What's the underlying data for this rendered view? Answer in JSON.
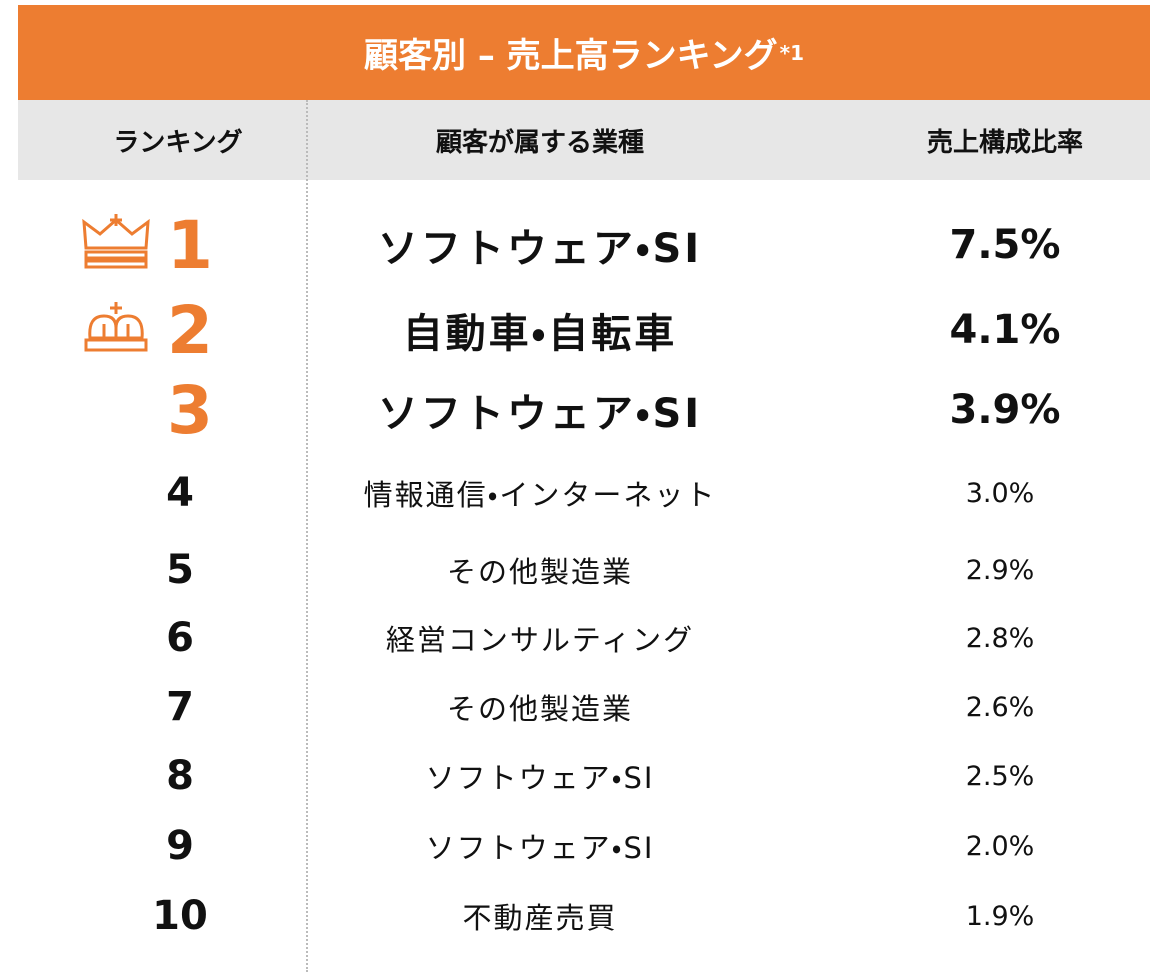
{
  "title": {
    "text": "顧客別 – 売上高ランキング",
    "note": "*1"
  },
  "table": {
    "headers": [
      "ランキング",
      "顧客が属する業種",
      "売上構成比率"
    ],
    "rows": [
      [
        1,
        "ソフトウェア・SI",
        "7.5%"
      ],
      [
        2,
        "自動車・自転車",
        "4.1%"
      ],
      [
        3,
        "ソフトウェア・SI",
        "3.9%"
      ],
      [
        4,
        "情報通信・インターネット",
        "3.0%"
      ],
      [
        5,
        "その他製造業",
        "2.9%"
      ],
      [
        6,
        "経営コンサルティング",
        "2.8%"
      ],
      [
        7,
        "その他製造業",
        "2.6%"
      ],
      [
        8,
        "ソフトウェア・SI",
        "2.5%"
      ],
      [
        9,
        "ソフトウェア・SI",
        "2.0%"
      ],
      [
        10,
        "不動産売買",
        "1.9%"
      ]
    ]
  }
}
